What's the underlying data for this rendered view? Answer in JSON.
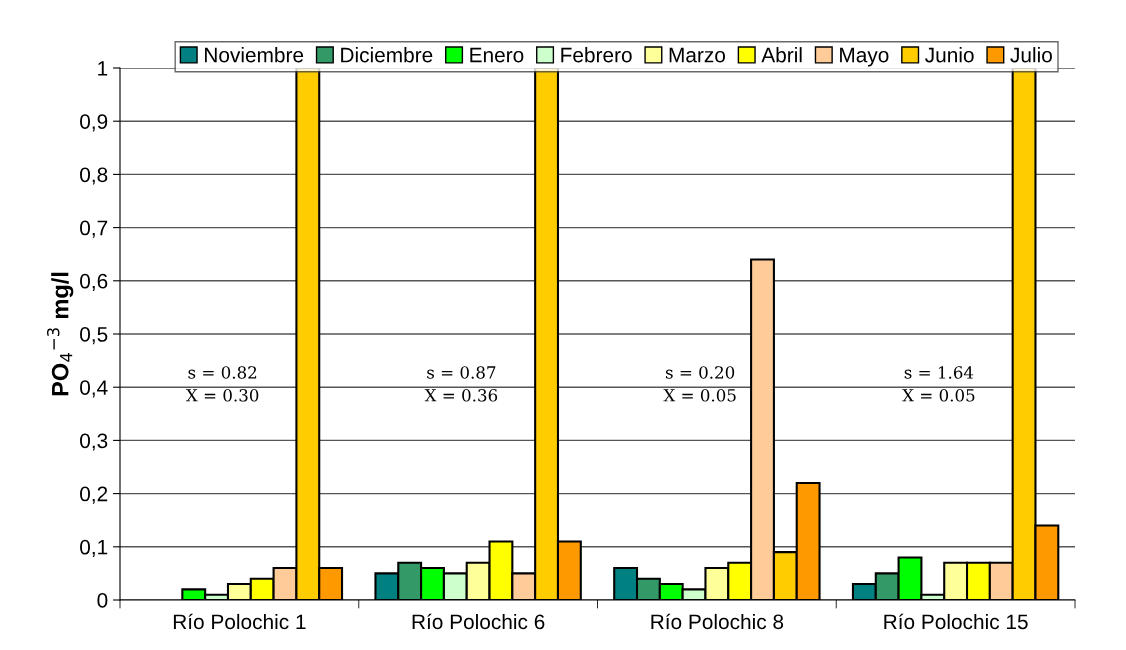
{
  "chart_data": {
    "type": "bar",
    "ylabel": "PO$_{4}$$^{−3}$ mg/l",
    "categories": [
      "Río Polochic 1",
      "Río Polochic 6",
      "Río Polochic 8",
      "Río Polochic 15"
    ],
    "series": [
      {
        "name": "Noviembre",
        "color": "#008080",
        "values": [
          null,
          0.05,
          0.06,
          0.03
        ]
      },
      {
        "name": "Diciembre",
        "color": "#339966",
        "values": [
          null,
          0.07,
          0.04,
          0.05
        ]
      },
      {
        "name": "Enero",
        "color": "#00ff00",
        "values": [
          0.02,
          0.06,
          0.03,
          0.08
        ]
      },
      {
        "name": "Febrero",
        "color": "#ccffcc",
        "values": [
          0.01,
          0.05,
          0.02,
          0.01
        ]
      },
      {
        "name": "Marzo",
        "color": "#ffff99",
        "values": [
          0.03,
          0.07,
          0.06,
          0.07
        ]
      },
      {
        "name": "Abril",
        "color": "#ffff00",
        "values": [
          0.04,
          0.11,
          0.07,
          0.07
        ]
      },
      {
        "name": "Mayo",
        "color": "#ffcc99",
        "values": [
          0.06,
          0.05,
          0.64,
          0.07
        ]
      },
      {
        "name": "Junio",
        "color": "#ffcc00",
        "values": [
          1,
          1,
          0.09,
          1
        ]
      },
      {
        "name": "Julio",
        "color": "#ff9900",
        "values": [
          0.06,
          0.11,
          0.22,
          0.14
        ]
      }
    ],
    "ylim": [
      0,
      1
    ],
    "yticks": [
      0,
      {
        "value": 0.1,
        "label": "0,1"
      },
      {
        "value": 0.2,
        "label": "0,2"
      },
      {
        "value": 0.3,
        "label": "0,3"
      },
      {
        "value": 0.4,
        "label": "0,4"
      },
      {
        "value": 0.5,
        "label": "0,5"
      },
      {
        "value": 0.6,
        "label": "0,6"
      },
      {
        "value": 0.7,
        "label": "0,7"
      },
      {
        "value": 0.8,
        "label": "0,8"
      },
      {
        "value": 0.9,
        "label": "0,9"
      },
      1
    ],
    "annotations": [
      "s = 0.82",
      "X = 0.30",
      "s = 0.87",
      "X = 0.36",
      "s = 0.20",
      "X = 0.05",
      "s = 1.64",
      "X = 0.05"
    ],
    "grid": "y",
    "legend": "top"
  }
}
